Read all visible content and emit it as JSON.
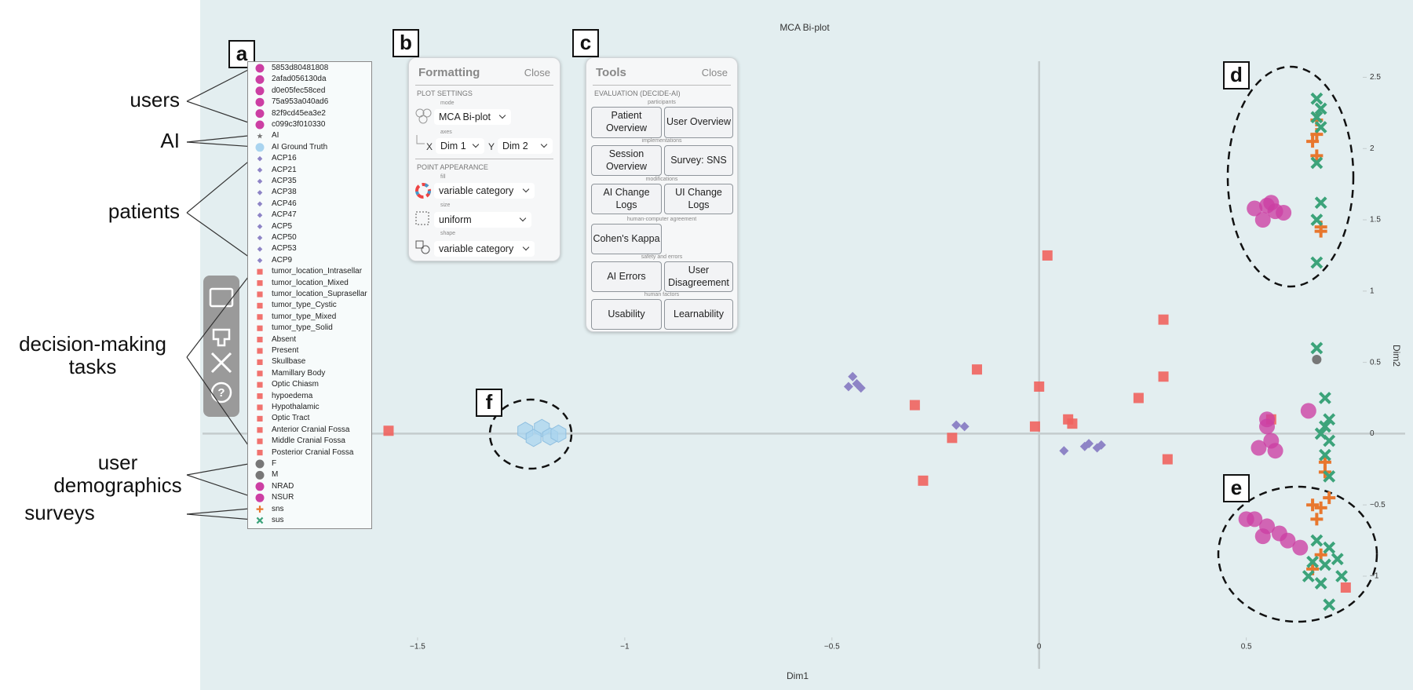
{
  "chart_data": {
    "type": "scatter",
    "title": "MCA Bi-plot",
    "x_label": "Dim1",
    "y_label": "Dim2",
    "xlim": [
      -2.0,
      0.8
    ],
    "ylim": [
      -1.65,
      2.8
    ],
    "xticks": [
      {
        "value": -1.5,
        "label": "−1.5"
      },
      {
        "value": -1,
        "label": "−1"
      },
      {
        "value": -0.5,
        "label": "−0.5"
      },
      0,
      0.5
    ],
    "yticks": [
      {
        "value": -1,
        "label": "−1"
      },
      {
        "value": -0.5,
        "label": "−0.5"
      },
      0,
      0.5,
      1,
      1.5,
      2,
      2.5
    ],
    "zero_lines": true,
    "series": [
      {
        "color": "#f0635e",
        "shape": "square",
        "x": [
          -1.57,
          0.02,
          0.3,
          -0.15,
          0.0,
          0.3,
          0.24,
          -0.3,
          0.07,
          0.08,
          -0.01,
          -0.21,
          0.31,
          -0.28,
          0.56,
          0.74
        ],
        "values": [
          0.02,
          1.25,
          0.8,
          0.45,
          0.33,
          0.4,
          0.25,
          0.2,
          0.1,
          0.07,
          0.05,
          -0.03,
          -0.18,
          -0.33,
          0.1,
          -1.08
        ]
      },
      {
        "color": "#8e84c6",
        "shape": "diamond",
        "x": [
          -0.45,
          -0.44,
          -0.46,
          -0.43,
          -0.18,
          -0.2,
          0.12,
          0.14,
          0.15,
          0.11,
          0.06
        ],
        "values": [
          0.4,
          0.35,
          0.33,
          0.32,
          0.05,
          0.06,
          -0.07,
          -0.1,
          -0.08,
          -0.09,
          -0.12
        ]
      },
      {
        "color": "#a9d4ef",
        "shape": "hexagon",
        "x": [
          -1.24,
          -1.2,
          -1.18,
          -1.22,
          -1.16
        ],
        "values": [
          0.02,
          0.04,
          -0.02,
          -0.03,
          0.0
        ]
      },
      {
        "color": "#cc3fa3",
        "shape": "circle",
        "x": [
          0.52,
          0.55,
          0.57,
          0.54,
          0.59,
          0.56,
          0.52,
          0.55,
          0.58,
          0.54,
          0.6,
          0.63,
          0.5,
          0.55,
          0.56,
          0.53,
          0.57,
          0.55,
          0.65
        ],
        "values": [
          1.58,
          1.6,
          1.56,
          1.5,
          1.55,
          1.62,
          -0.6,
          -0.65,
          -0.7,
          -0.72,
          -0.75,
          -0.8,
          -0.6,
          0.05,
          -0.05,
          -0.1,
          -0.12,
          0.1,
          0.16
        ]
      },
      {
        "color": "#777777",
        "shape": "dot",
        "x": [
          0.67
        ],
        "values": [
          0.52
        ]
      },
      {
        "name": "sns",
        "color": "#e8772e",
        "shape": "plus",
        "x": [
          0.67,
          0.67,
          0.66,
          0.67,
          0.68,
          0.68,
          0.69,
          0.69,
          0.7,
          0.66,
          0.68,
          0.67,
          0.68,
          0.66
        ],
        "values": [
          2.2,
          2.1,
          2.05,
          1.95,
          1.45,
          1.42,
          -0.2,
          -0.27,
          -0.45,
          -0.5,
          -0.52,
          -0.6,
          -0.85,
          -0.95
        ]
      },
      {
        "name": "sus",
        "color": "#3ca37a",
        "shape": "cross",
        "x": [
          0.67,
          0.68,
          0.67,
          0.68,
          0.67,
          0.68,
          0.67,
          0.67,
          0.67,
          0.69,
          0.7,
          0.69,
          0.68,
          0.7,
          0.69,
          0.7,
          0.67,
          0.7,
          0.66,
          0.69,
          0.72,
          0.65,
          0.68,
          0.7,
          0.73
        ],
        "values": [
          2.35,
          2.28,
          2.22,
          2.15,
          1.9,
          1.62,
          1.5,
          1.2,
          0.6,
          0.25,
          0.1,
          0.05,
          0.0,
          -0.05,
          -0.15,
          -0.3,
          -0.75,
          -0.8,
          -0.9,
          -0.92,
          -0.88,
          -1.0,
          -1.05,
          -1.2,
          -1.0
        ]
      }
    ]
  },
  "legend": {
    "items": [
      {
        "label": "5853d80481808",
        "color": "#cc3fa3",
        "shape": "circle"
      },
      {
        "label": "2afad056130da",
        "color": "#cc3fa3",
        "shape": "circle"
      },
      {
        "label": "d0e05fec58ced",
        "color": "#cc3fa3",
        "shape": "circle"
      },
      {
        "label": "75a953a040ad6",
        "color": "#cc3fa3",
        "shape": "circle"
      },
      {
        "label": "82f9cd45ea3e2",
        "color": "#cc3fa3",
        "shape": "circle"
      },
      {
        "label": "c099c3f010330",
        "color": "#cc3fa3",
        "shape": "circle"
      },
      {
        "label": "AI",
        "color": "#777777",
        "shape": "star"
      },
      {
        "label": "AI Ground Truth",
        "color": "#a9d4ef",
        "shape": "circle"
      },
      {
        "label": "ACP16",
        "color": "#8e84c6",
        "shape": "diamond"
      },
      {
        "label": "ACP21",
        "color": "#8e84c6",
        "shape": "diamond"
      },
      {
        "label": "ACP35",
        "color": "#8e84c6",
        "shape": "diamond"
      },
      {
        "label": "ACP38",
        "color": "#8e84c6",
        "shape": "diamond"
      },
      {
        "label": "ACP46",
        "color": "#8e84c6",
        "shape": "diamond"
      },
      {
        "label": "ACP47",
        "color": "#8e84c6",
        "shape": "diamond"
      },
      {
        "label": "ACP5",
        "color": "#8e84c6",
        "shape": "diamond"
      },
      {
        "label": "ACP50",
        "color": "#8e84c6",
        "shape": "diamond"
      },
      {
        "label": "ACP53",
        "color": "#8e84c6",
        "shape": "diamond"
      },
      {
        "label": "ACP9",
        "color": "#8e84c6",
        "shape": "diamond"
      },
      {
        "label": "tumor_location_Intrasellar",
        "color": "#f0635e",
        "shape": "square"
      },
      {
        "label": "tumor_location_Mixed",
        "color": "#f0635e",
        "shape": "square"
      },
      {
        "label": "tumor_location_Suprasellar",
        "color": "#f0635e",
        "shape": "square"
      },
      {
        "label": "tumor_type_Cystic",
        "color": "#f0635e",
        "shape": "square"
      },
      {
        "label": "tumor_type_Mixed",
        "color": "#f0635e",
        "shape": "square"
      },
      {
        "label": "tumor_type_Solid",
        "color": "#f0635e",
        "shape": "square"
      },
      {
        "label": "Absent",
        "color": "#f0635e",
        "shape": "square"
      },
      {
        "label": "Present",
        "color": "#f0635e",
        "shape": "square"
      },
      {
        "label": "Skullbase",
        "color": "#f0635e",
        "shape": "square"
      },
      {
        "label": "Mamillary Body",
        "color": "#f0635e",
        "shape": "square"
      },
      {
        "label": "Optic Chiasm",
        "color": "#f0635e",
        "shape": "square"
      },
      {
        "label": "hypoedema",
        "color": "#f0635e",
        "shape": "square"
      },
      {
        "label": "Hypothalamic",
        "color": "#f0635e",
        "shape": "square"
      },
      {
        "label": "Optic Tract",
        "color": "#f0635e",
        "shape": "square"
      },
      {
        "label": "Anterior Cranial Fossa",
        "color": "#f0635e",
        "shape": "square"
      },
      {
        "label": "Middle Cranial Fossa",
        "color": "#f0635e",
        "shape": "square"
      },
      {
        "label": "Posterior Cranial Fossa",
        "color": "#f0635e",
        "shape": "square"
      },
      {
        "label": "F",
        "color": "#777777",
        "shape": "circle"
      },
      {
        "label": "M",
        "color": "#777777",
        "shape": "circle"
      },
      {
        "label": "NRAD",
        "color": "#cc3fa3",
        "shape": "circle"
      },
      {
        "label": "NSUR",
        "color": "#cc3fa3",
        "shape": "circle"
      },
      {
        "label": "sns",
        "color": "#e8772e",
        "shape": "plus"
      },
      {
        "label": "sus",
        "color": "#3ca37a",
        "shape": "cross"
      }
    ]
  },
  "annotations": {
    "groups": [
      {
        "lines": [
          "users"
        ]
      },
      {
        "lines": [
          "AI"
        ]
      },
      {
        "lines": [
          "patients"
        ]
      },
      {
        "lines": [
          "decision-making",
          "tasks"
        ]
      },
      {
        "lines": [
          "user",
          "demographics"
        ]
      },
      {
        "lines": [
          "surveys"
        ]
      }
    ],
    "panel_labels": [
      "a",
      "b",
      "c",
      "d",
      "e",
      "f"
    ]
  },
  "formatting_panel": {
    "title": "Formatting",
    "close": "Close",
    "plot_settings": "PLOT SETTINGS",
    "mode_label": "mode",
    "mode": "MCA Bi-plot",
    "axes_label": "axes",
    "x_axis": "X",
    "x_value": "Dim 1",
    "y_axis": "Y",
    "y_value": "Dim 2",
    "point_appearance": "POINT APPEARANCE",
    "fill_label": "fill",
    "fill": "variable category",
    "size_label": "size",
    "size": "uniform",
    "shape_label": "shape",
    "shape": "variable category"
  },
  "tools_panel": {
    "title": "Tools",
    "close": "Close",
    "section": "EVALUATION (DECIDE-AI)",
    "groups": [
      {
        "label": "participants",
        "buttons": [
          "Patient Overview",
          "User Overview"
        ]
      },
      {
        "label": "implementations",
        "buttons": [
          "Session Overview",
          "Survey: SNS"
        ]
      },
      {
        "label": "modifications",
        "buttons": [
          "AI Change Logs",
          "UI Change Logs"
        ]
      },
      {
        "label": "human-computer agreement",
        "buttons": [
          "Cohen's Kappa"
        ]
      },
      {
        "label": "safety and errors",
        "buttons": [
          "AI Errors",
          "User Disagreement"
        ]
      },
      {
        "label": "human factors",
        "buttons": [
          "Usability",
          "Learnability"
        ]
      }
    ]
  }
}
